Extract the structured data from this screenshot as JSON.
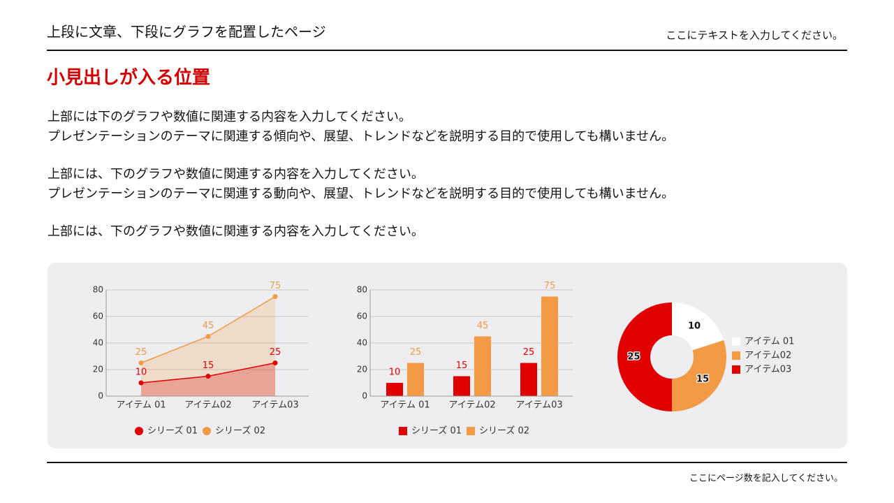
{
  "header": {
    "title": "上段に文章、下段にグラフを配置したページ",
    "note": "ここにテキストを入力してください。"
  },
  "heading": "小見出しが入る位置",
  "paragraphs": [
    [
      "上部には下のグラフや数値に関連する内容を入力してください。",
      "プレゼンテーションのテーマに関連する傾向や、展望、トレンドなどを説明する目的で使用しても構いません。"
    ],
    [
      "上部には、下のグラフや数値に関連する内容を入力してください。",
      "プレゼンテーションのテーマに関連する動向や、展望、トレンドなどを説明する目的で使用しても構いません。"
    ],
    [
      "上部には、下のグラフや数値に関連する内容を入力してください。"
    ]
  ],
  "footer": "ここにページ数を記入してください。",
  "chart_data": [
    {
      "type": "area",
      "categories": [
        "アイテム 01",
        "アイテム02",
        "アイテム03"
      ],
      "series": [
        {
          "name": "シリーズ 01",
          "color": "#e00000",
          "values": [
            10,
            15,
            25
          ]
        },
        {
          "name": "シリーズ 02",
          "color": "#f39a45",
          "values": [
            25,
            45,
            75
          ]
        }
      ],
      "ylim": [
        0,
        80
      ],
      "yticks": [
        0,
        20,
        40,
        60,
        80
      ],
      "grid": true
    },
    {
      "type": "bar",
      "categories": [
        "アイテム 01",
        "アイテム02",
        "アイテム03"
      ],
      "series": [
        {
          "name": "シリーズ 01",
          "color": "#e00000",
          "values": [
            10,
            15,
            25
          ]
        },
        {
          "name": "シリーズ 02",
          "color": "#f39a45",
          "values": [
            25,
            45,
            75
          ]
        }
      ],
      "ylim": [
        0,
        80
      ],
      "yticks": [
        0,
        20,
        40,
        60,
        80
      ],
      "grid": true
    },
    {
      "type": "donut",
      "categories": [
        "アイテム 01",
        "アイテム02",
        "アイテム03"
      ],
      "values": [
        10,
        15,
        25
      ],
      "colors": [
        "#ffffff",
        "#f39a45",
        "#e00000"
      ]
    }
  ]
}
